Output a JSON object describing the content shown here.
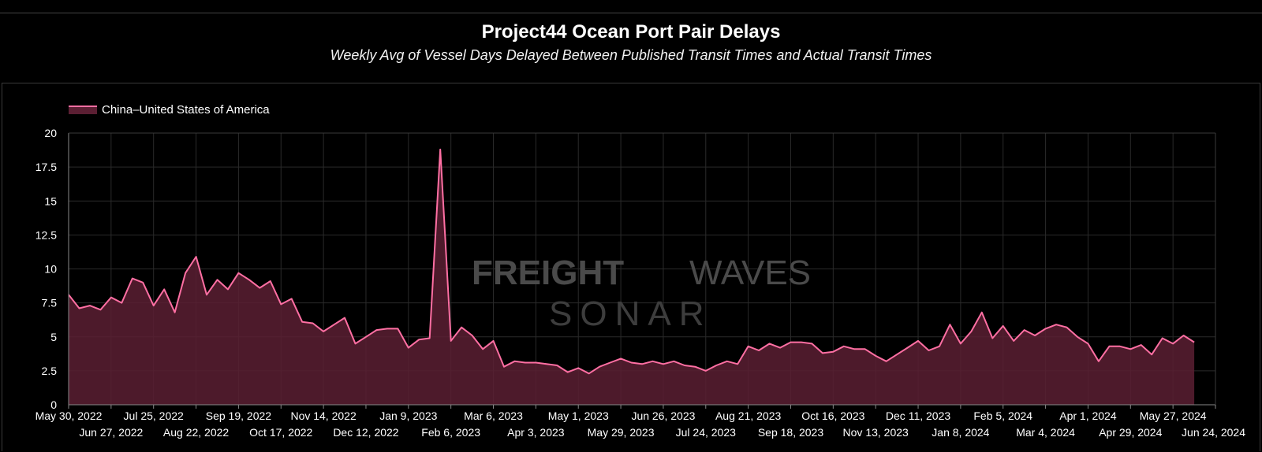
{
  "chart_data": {
    "type": "area",
    "title": "Project44 Ocean Port Pair Delays",
    "subtitle": "Weekly Avg of Vessel Days Delayed Between Published Transit Times and Actual Transit Times",
    "xlabel": "",
    "ylabel": "",
    "ylim": [
      0,
      20
    ],
    "y_ticks": [
      "0",
      "2.5",
      "5",
      "7.5",
      "10",
      "12.5",
      "15",
      "17.5",
      "20"
    ],
    "x_ticks_row1": [
      "May 30, 2022",
      "Jul 25, 2022",
      "Sep 19, 2022",
      "Nov 14, 2022",
      "Jan 9, 2023",
      "Mar 6, 2023",
      "May 1, 2023",
      "Jun 26, 2023",
      "Aug 21, 2023",
      "Oct 16, 2023",
      "Dec 11, 2023",
      "Feb 5, 2024",
      "Apr 1, 2024",
      "May 27, 2024"
    ],
    "x_ticks_row2": [
      "Jun 27, 2022",
      "Aug 22, 2022",
      "Oct 17, 2022",
      "Dec 12, 2022",
      "Feb 6, 2023",
      "Apr 3, 2023",
      "May 29, 2023",
      "Jul 24, 2023",
      "Sep 18, 2023",
      "Nov 13, 2023",
      "Jan 8, 2024",
      "Mar 4, 2024",
      "Apr 29, 2024",
      "Jun 24, 2024"
    ],
    "grid": true,
    "legend_placement": "top-left",
    "watermark": [
      "FREIGHTWAVES",
      "SONAR"
    ],
    "colors": {
      "line": "#ff6fa3",
      "fill": "#5b1f33",
      "grid": "#2a2a2a",
      "axis": "#888888"
    },
    "series": [
      {
        "name": "China–United States of America",
        "start_date": "2022-05-30",
        "interval": "weekly",
        "values": [
          8.1,
          7.1,
          7.3,
          7.0,
          7.9,
          7.5,
          9.3,
          9.0,
          7.3,
          8.5,
          6.8,
          9.7,
          10.9,
          8.1,
          9.2,
          8.5,
          9.7,
          9.2,
          8.6,
          9.1,
          7.4,
          7.8,
          6.1,
          6.0,
          5.4,
          5.9,
          6.4,
          4.5,
          5.0,
          5.5,
          5.6,
          5.6,
          4.2,
          4.8,
          4.9,
          18.8,
          4.7,
          5.7,
          5.1,
          4.1,
          4.7,
          2.8,
          3.2,
          3.1,
          3.1,
          3.0,
          2.9,
          2.4,
          2.7,
          2.3,
          2.8,
          3.1,
          3.4,
          3.1,
          3.0,
          3.2,
          3.0,
          3.2,
          2.9,
          2.8,
          2.5,
          2.9,
          3.2,
          3.0,
          4.3,
          4.0,
          4.5,
          4.2,
          4.6,
          4.6,
          4.5,
          3.8,
          3.9,
          4.3,
          4.1,
          4.1,
          3.6,
          3.2,
          3.7,
          4.2,
          4.7,
          4.0,
          4.3,
          5.9,
          4.5,
          5.4,
          6.8,
          4.9,
          5.8,
          4.7,
          5.5,
          5.1,
          5.6,
          5.9,
          5.7,
          5.0,
          4.5,
          3.2,
          4.3,
          4.3,
          4.1,
          4.4,
          3.7,
          4.9,
          4.5,
          5.1,
          4.6
        ]
      }
    ]
  }
}
